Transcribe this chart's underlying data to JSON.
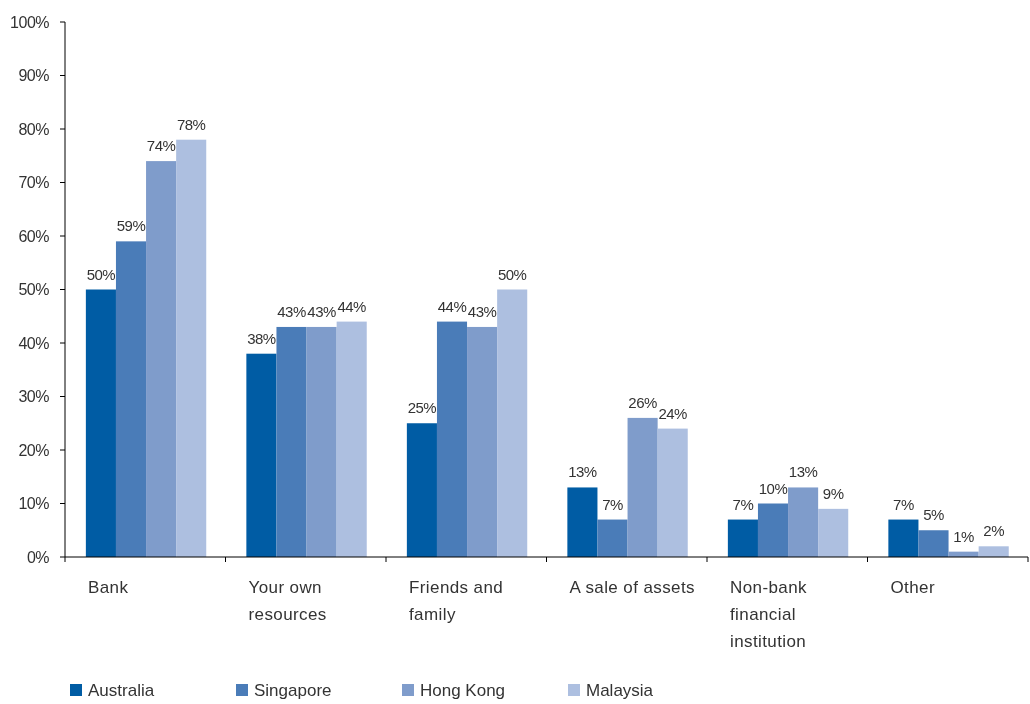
{
  "chart_data": {
    "type": "bar",
    "categories": [
      "Bank",
      "Your own resources",
      "Friends and family",
      "A sale of assets",
      "Non-bank financial institution",
      "Other"
    ],
    "series": [
      {
        "name": "Australia",
        "color": "#005ca4",
        "values": [
          50,
          38,
          25,
          13,
          7,
          7
        ],
        "value_labels": [
          "50%",
          "38%",
          "25%",
          "13%",
          "7%",
          "7%"
        ]
      },
      {
        "name": "Singapore",
        "color": "#4a7cb8",
        "values": [
          59,
          43,
          44,
          7,
          10,
          5
        ],
        "value_labels": [
          "59%",
          "43%",
          "44%",
          "7%",
          "10%",
          "5%"
        ]
      },
      {
        "name": "Hong Kong",
        "color": "#7f9ccb",
        "values": [
          74,
          43,
          43,
          26,
          13,
          1
        ],
        "value_labels": [
          "74%",
          "43%",
          "43%",
          "26%",
          "13%",
          "1%"
        ]
      },
      {
        "name": "Malaysia",
        "color": "#adbfe0",
        "values": [
          78,
          44,
          50,
          24,
          9,
          2
        ],
        "value_labels": [
          "78%",
          "44%",
          "50%",
          "24%",
          "9%",
          "2%"
        ]
      }
    ],
    "ylim": [
      0,
      100
    ],
    "yticks": [
      {
        "value": 0,
        "label": "0%"
      },
      {
        "value": 10,
        "label": "10%"
      },
      {
        "value": 20,
        "label": "20%"
      },
      {
        "value": 30,
        "label": "30%"
      },
      {
        "value": 40,
        "label": "40%"
      },
      {
        "value": 50,
        "label": "50%"
      },
      {
        "value": 60,
        "label": "60%"
      },
      {
        "value": 70,
        "label": "70%"
      },
      {
        "value": 80,
        "label": "80%"
      },
      {
        "value": 90,
        "label": "90%"
      },
      {
        "value": 100,
        "label": "100%"
      }
    ],
    "legend": "bottom"
  }
}
